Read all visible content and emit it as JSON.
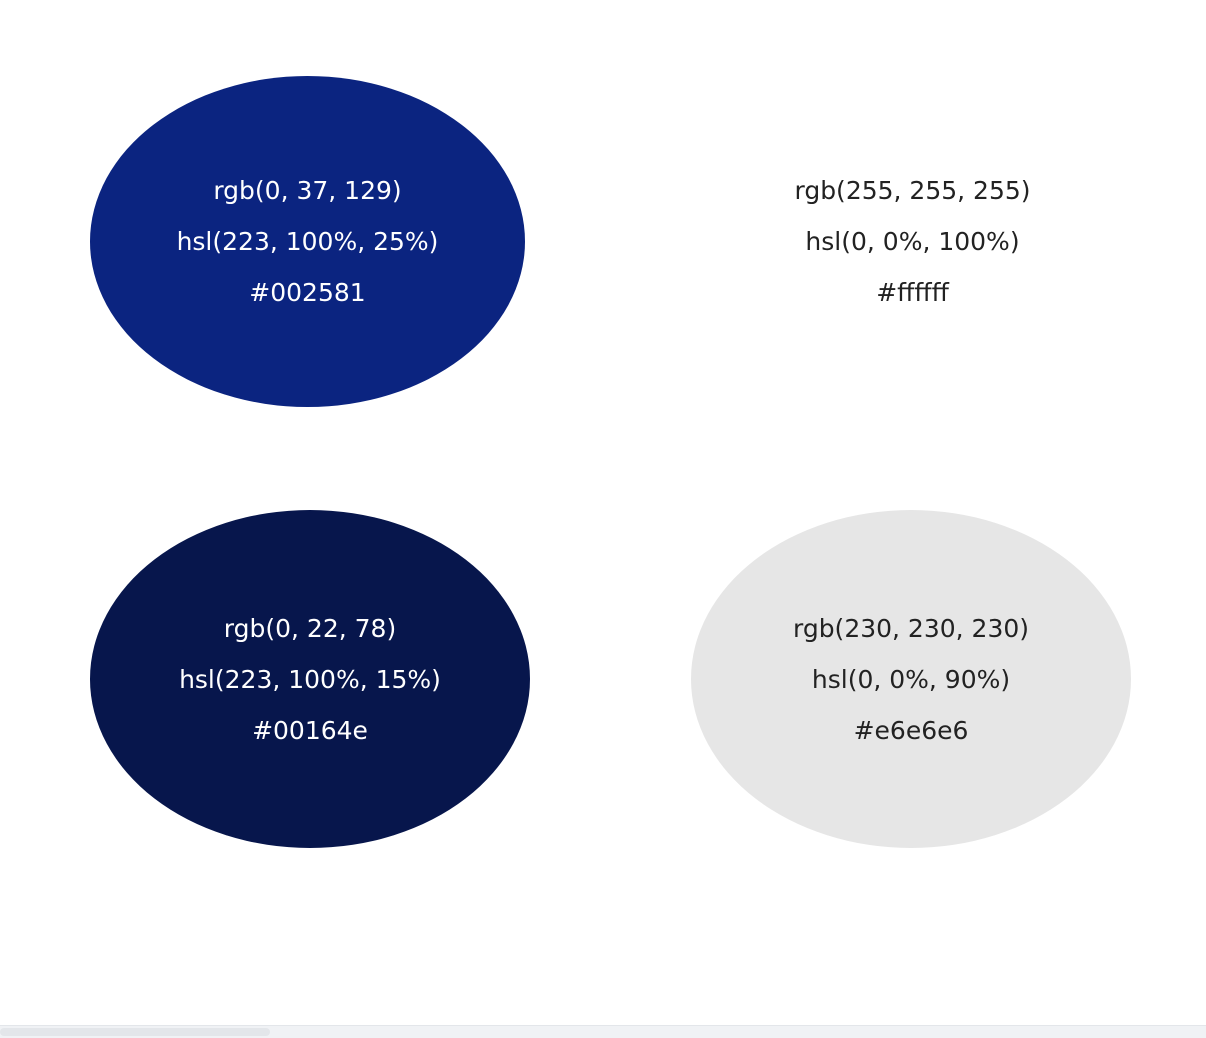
{
  "swatches": [
    {
      "rgb": "rgb(0, 37, 129)",
      "hsl": "hsl(223, 100%, 25%)",
      "hex": "#002581",
      "fill": "#0b2480",
      "text_color": "#ffffff"
    },
    {
      "rgb": "rgb(255, 255, 255)",
      "hsl": "hsl(0, 0%, 100%)",
      "hex": "#ffffff",
      "fill": "#ffffff",
      "text_color": "#222222"
    },
    {
      "rgb": "rgb(0, 22, 78)",
      "hsl": "hsl(223, 100%, 15%)",
      "hex": "#00164e",
      "fill": "#07164c",
      "text_color": "#ffffff"
    },
    {
      "rgb": "rgb(230, 230, 230)",
      "hsl": "hsl(0, 0%, 90%)",
      "hex": "#e6e6e6",
      "fill": "#e6e6e6",
      "text_color": "#222222"
    }
  ]
}
